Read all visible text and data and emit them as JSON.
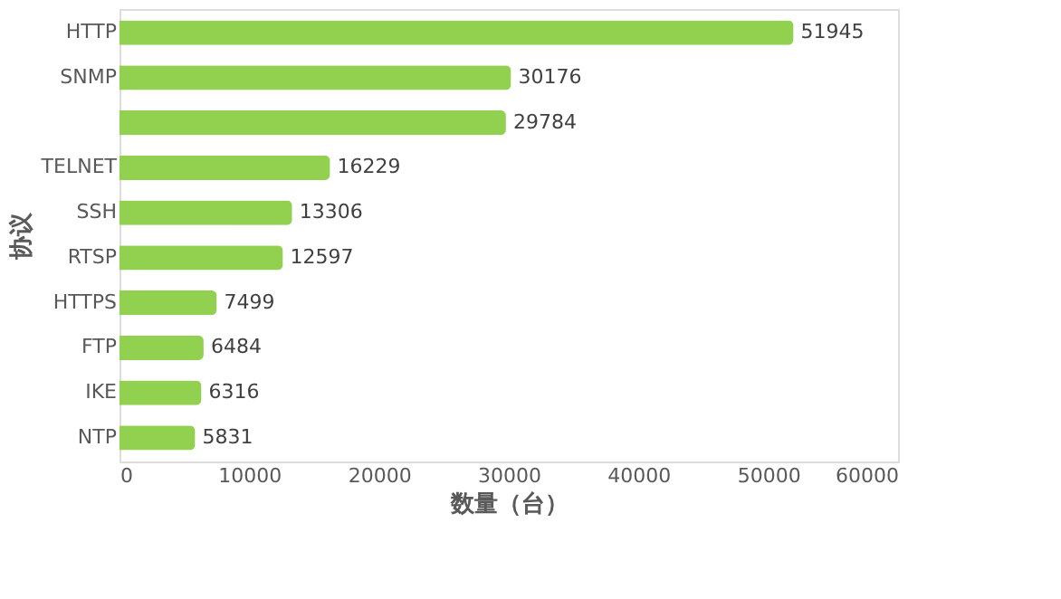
{
  "chart_data": {
    "type": "bar",
    "orientation": "horizontal",
    "xlabel": "数量（台）",
    "ylabel": "协议",
    "categories": [
      "HTTP",
      "SNMP",
      null,
      "TELNET",
      "SSH",
      "RTSP",
      "HTTPS",
      "FTP",
      "IKE",
      "NTP"
    ],
    "values": [
      51945,
      30176,
      29784,
      16229,
      13306,
      12597,
      7499,
      6484,
      6316,
      5831
    ],
    "color": "#92d050",
    "xlim": [
      0,
      60000
    ],
    "xticks": [
      0,
      10000,
      20000,
      30000,
      40000,
      50000,
      60000
    ],
    "data_labels": true,
    "grid": false
  }
}
